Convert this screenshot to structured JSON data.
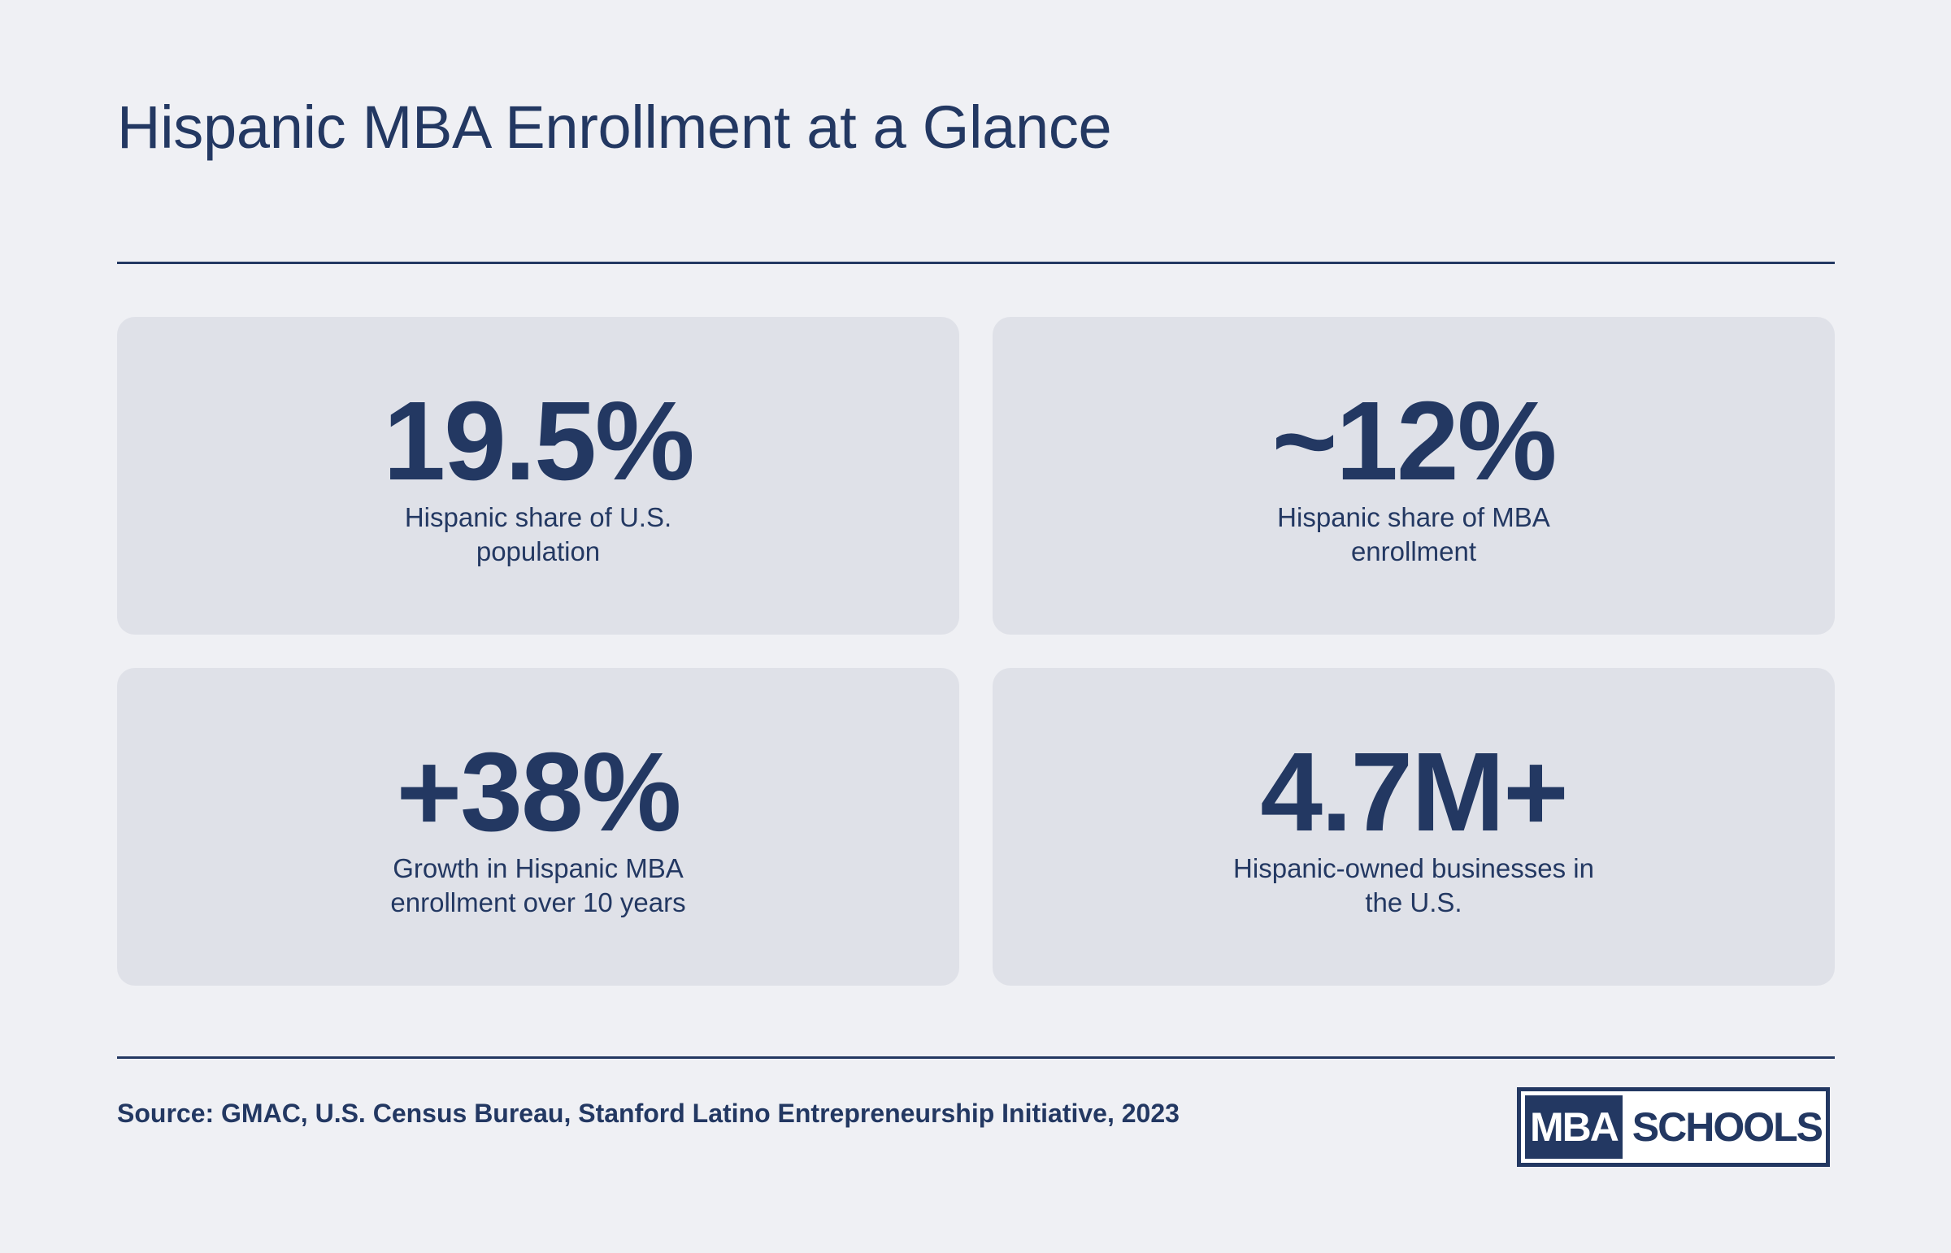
{
  "header": {
    "title": "Hispanic MBA Enrollment at a Glance"
  },
  "stats": [
    {
      "value": "19.5%",
      "label": "Hispanic share of U.S. population"
    },
    {
      "value": "~12%",
      "label": "Hispanic share of MBA enrollment"
    },
    {
      "value": "+38%",
      "label": "Growth in Hispanic MBA enrollment over 10 years"
    },
    {
      "value": "4.7M+",
      "label": "Hispanic-owned businesses in the U.S."
    }
  ],
  "footer": {
    "source": "Source: GMAC, U.S. Census Bureau, Stanford Latino Entrepreneurship Initiative, 2023",
    "logo": {
      "left": "MBA",
      "right": "SCHOOLS"
    }
  },
  "colors": {
    "background": "#eff0f4",
    "card": "#dfe1e8",
    "navy": "#233862"
  }
}
